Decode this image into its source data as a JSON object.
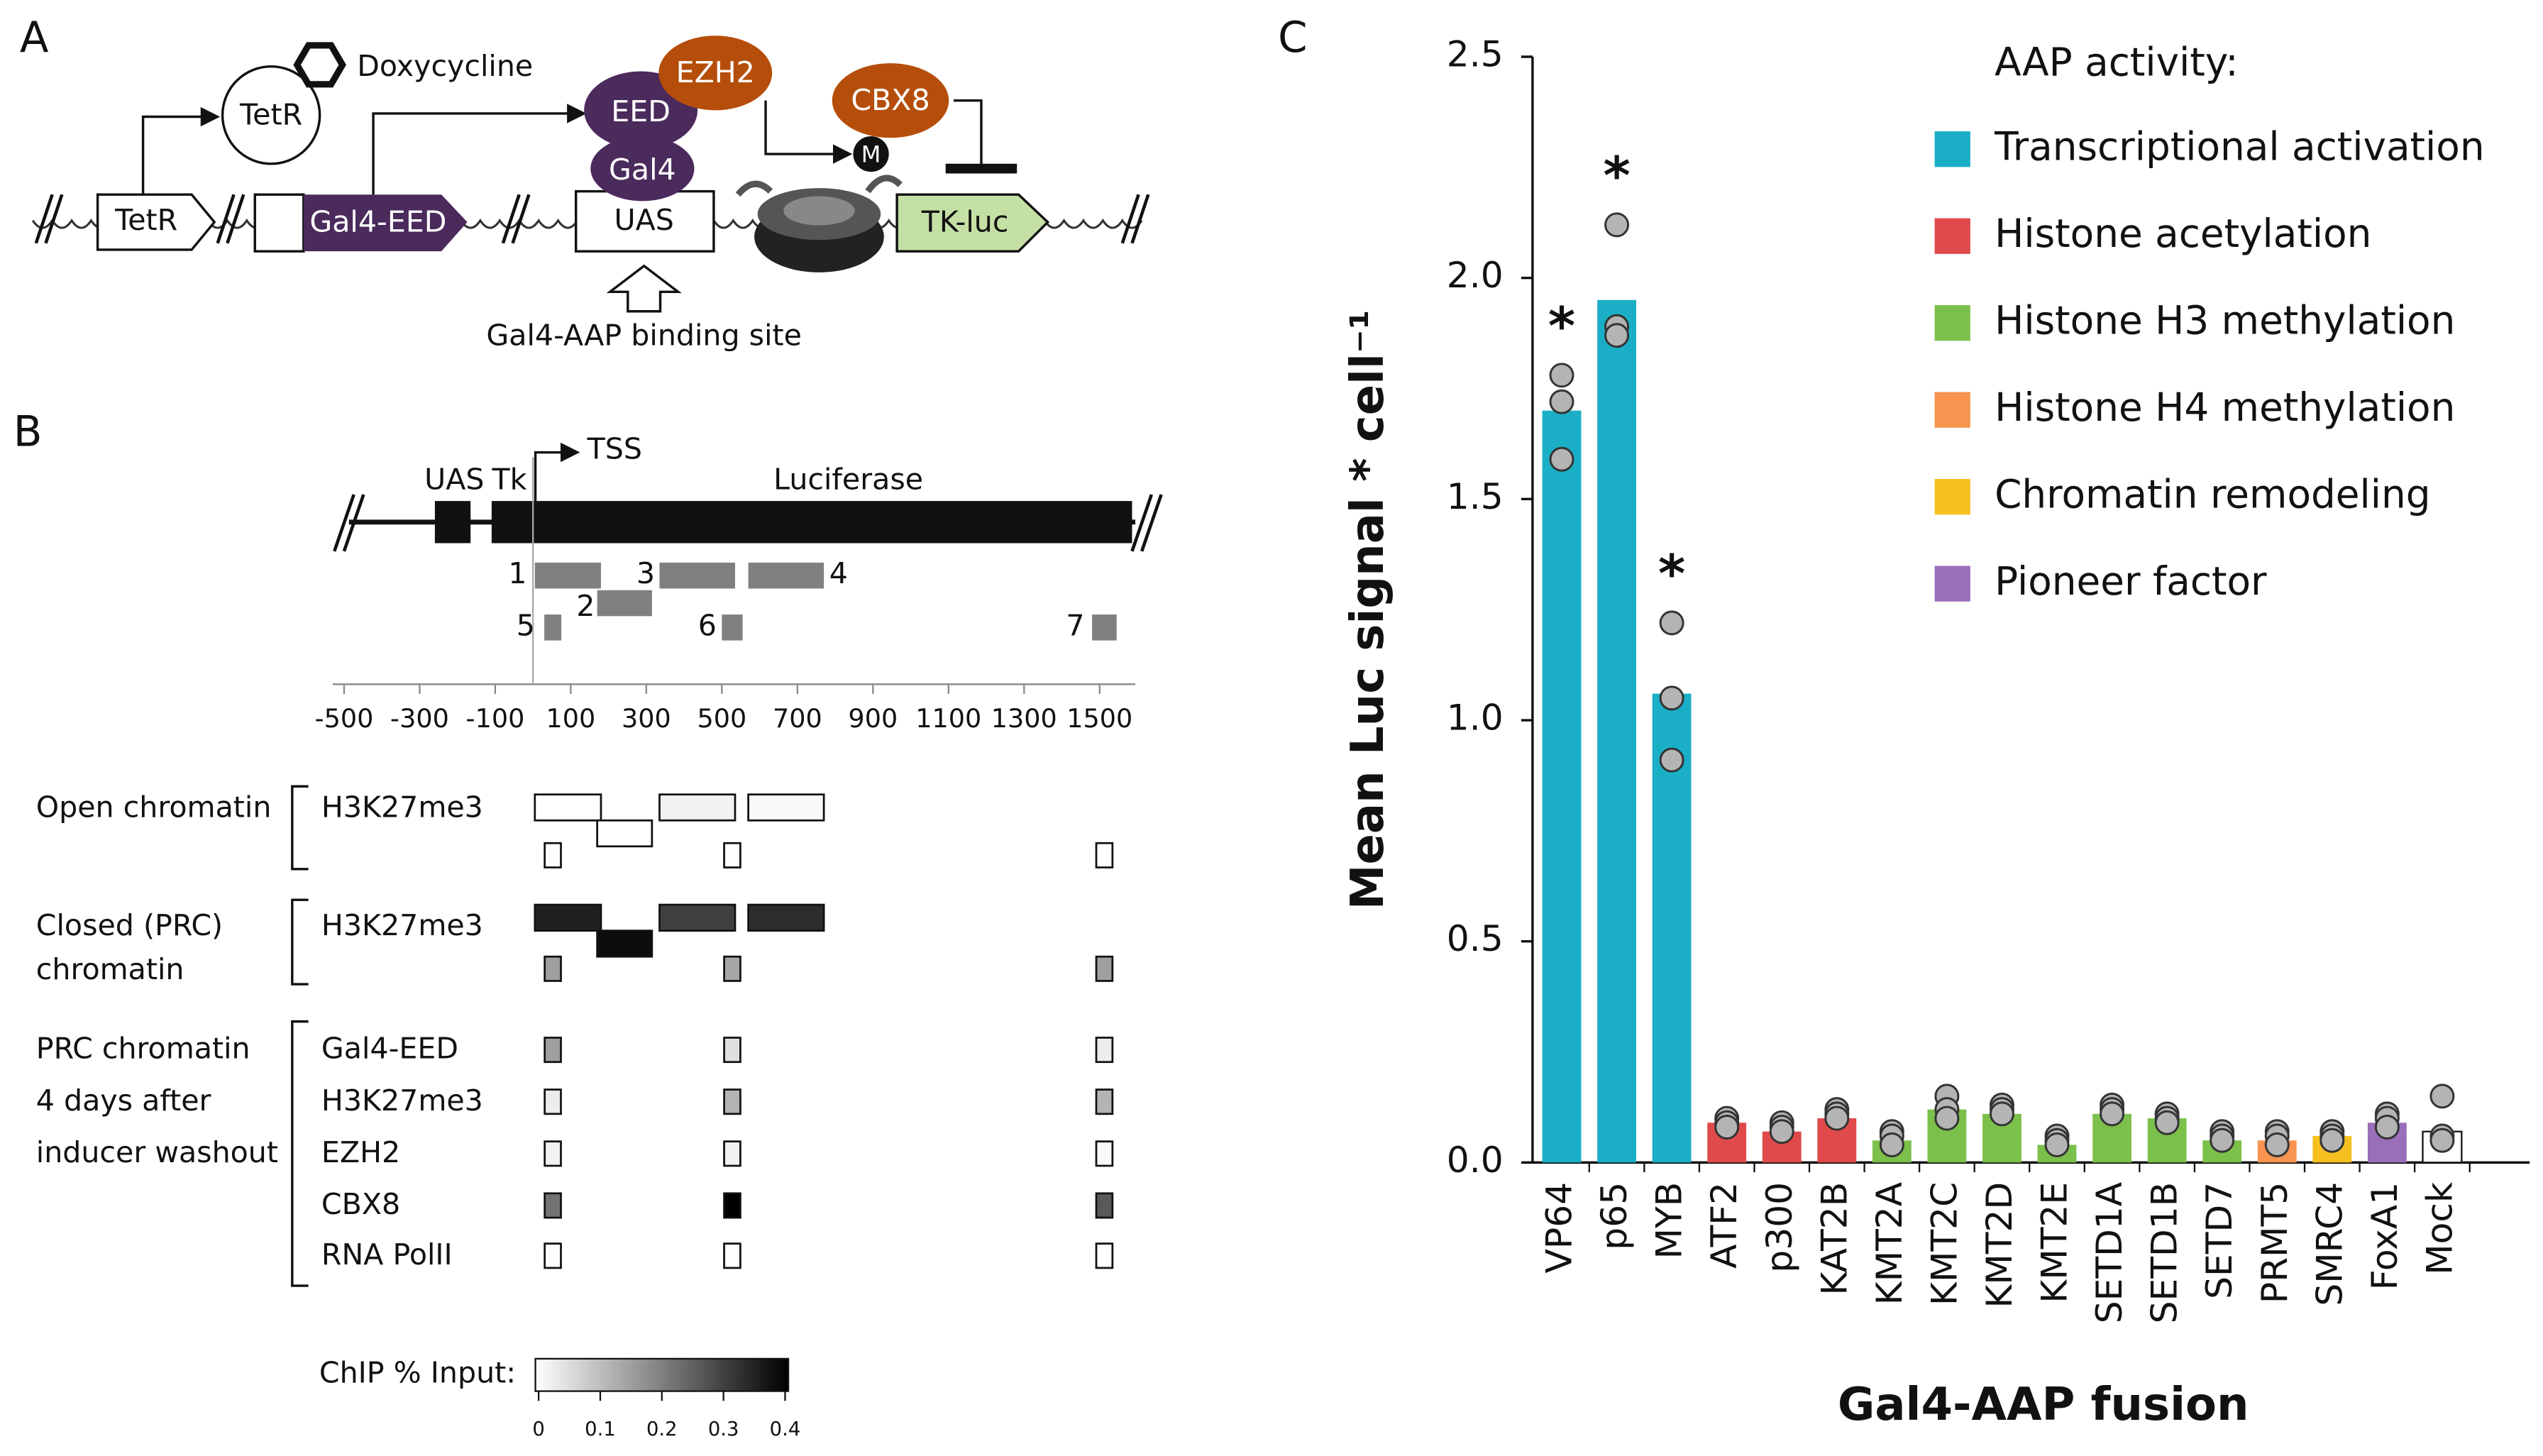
{
  "panels": {
    "a": "A",
    "b": "B",
    "c": "C"
  },
  "diagram_a": {
    "doxycycline": "Doxycycline",
    "tetr_protein": "TetR",
    "eed": "EED",
    "ezh2": "EZH2",
    "cbx8": "CBX8",
    "methyl": "M",
    "gal4": "Gal4",
    "tetr_gene": "TetR",
    "gal4_eed": "Gal4-EED",
    "uas": "UAS",
    "tk_luc": "TK-luc",
    "binding_site": "Gal4-AAP binding site"
  },
  "diagram_b": {
    "uas": "UAS",
    "tk": "Tk",
    "tss": "TSS",
    "luciferase": "Luciferase",
    "amplicons": [
      "1",
      "2",
      "3",
      "4",
      "5",
      "6",
      "7"
    ],
    "axis_ticks": [
      -500,
      -300,
      -100,
      100,
      300,
      500,
      700,
      900,
      1100,
      1300,
      1500
    ],
    "groups": [
      {
        "lines": [
          "Open chromatin"
        ],
        "rows": [
          {
            "name": "H3K27me3",
            "large": [
              0,
              0,
              0.02,
              0.01
            ],
            "small": [
              0,
              0,
              0
            ]
          }
        ]
      },
      {
        "lines": [
          "Closed (PRC)",
          "chromatin"
        ],
        "rows": [
          {
            "name": "H3K27me3",
            "large": [
              0.35,
              0.38,
              0.3,
              0.33
            ],
            "small": [
              0.15,
              0.14,
              0.15
            ]
          }
        ]
      },
      {
        "lines": [
          "PRC chromatin",
          "4 days after",
          "inducer washout"
        ],
        "rows": [
          {
            "name": "Gal4-EED",
            "small": [
              0.15,
              0.05,
              0.03
            ]
          },
          {
            "name": "H3K27me3",
            "small": [
              0.03,
              0.12,
              0.12
            ]
          },
          {
            "name": "EZH2",
            "small": [
              0.02,
              0.02,
              0.01
            ]
          },
          {
            "name": "CBX8",
            "small": [
              0.22,
              0.4,
              0.26
            ]
          },
          {
            "name": "RNA PolII",
            "small": [
              0,
              0,
              0
            ]
          }
        ]
      }
    ],
    "colorbar": {
      "label": "ChIP % Input:",
      "range": [
        0,
        0.4
      ],
      "ticks": [
        0,
        0.1,
        0.2,
        0.3,
        0.4
      ]
    }
  },
  "chart_data": {
    "type": "bar",
    "y_label": "Mean Luc signal * cell⁻¹",
    "x_label": "Gal4-AAP fusion",
    "categories": [
      "VP64",
      "p65",
      "MYB",
      "ATF2",
      "p300",
      "KAT2B",
      "KMT2A",
      "KMT2C",
      "KMT2D",
      "KMT2E",
      "SETD1A",
      "SETD1B",
      "SETD7",
      "PRMT5",
      "SMRC4",
      "FoxA1",
      "Mock"
    ],
    "values": [
      1.7,
      1.95,
      1.06,
      0.09,
      0.07,
      0.1,
      0.05,
      0.12,
      0.11,
      0.04,
      0.11,
      0.1,
      0.05,
      0.05,
      0.06,
      0.09,
      0.07
    ],
    "replicates": [
      [
        1.78,
        1.72,
        1.59
      ],
      [
        2.12,
        1.89,
        1.87
      ],
      [
        1.22,
        1.05,
        0.91
      ],
      [
        0.1,
        0.09,
        0.08
      ],
      [
        0.09,
        0.08,
        0.07
      ],
      [
        0.12,
        0.11,
        0.1
      ],
      [
        0.07,
        0.06,
        0.04
      ],
      [
        0.15,
        0.12,
        0.1
      ],
      [
        0.13,
        0.12,
        0.11
      ],
      [
        0.06,
        0.05,
        0.04
      ],
      [
        0.13,
        0.12,
        0.11
      ],
      [
        0.11,
        0.1,
        0.09
      ],
      [
        0.07,
        0.06,
        0.05
      ],
      [
        0.07,
        0.06,
        0.04
      ],
      [
        0.07,
        0.06,
        0.05
      ],
      [
        0.11,
        0.1,
        0.08
      ],
      [
        0.15,
        0.06,
        0.05
      ]
    ],
    "colors": [
      "#1aafc6",
      "#1aafc6",
      "#1aafc6",
      "#e04a4a",
      "#e04a4a",
      "#e04a4a",
      "#7cc04c",
      "#7cc04c",
      "#7cc04c",
      "#7cc04c",
      "#7cc04c",
      "#7cc04c",
      "#7cc04c",
      "#f7944f",
      "#f5c020",
      "#9a6fba",
      "#ffffff"
    ],
    "significance": [
      "*",
      "*",
      "*",
      null,
      null,
      null,
      null,
      null,
      null,
      null,
      null,
      null,
      null,
      null,
      null,
      null,
      null
    ],
    "ylim": [
      0,
      2.5
    ],
    "yticks": [
      {
        "value": 0,
        "label": "0.0"
      },
      0.5,
      {
        "value": 1,
        "label": "1.0"
      },
      1.5,
      {
        "value": 2,
        "label": "2.0"
      },
      2.5
    ],
    "legend": {
      "title": "AAP activity:",
      "entries": [
        {
          "name": "Transcriptional activation",
          "color": "#1aafc6"
        },
        {
          "name": "Histone acetylation",
          "color": "#e04a4a"
        },
        {
          "name": "Histone H3 methylation",
          "color": "#7cc04c"
        },
        {
          "name": "Histone H4 methylation",
          "color": "#f7944f"
        },
        {
          "name": "Chromatin remodeling",
          "color": "#f5c020"
        },
        {
          "name": "Pioneer factor",
          "color": "#9a6fba"
        }
      ]
    }
  }
}
